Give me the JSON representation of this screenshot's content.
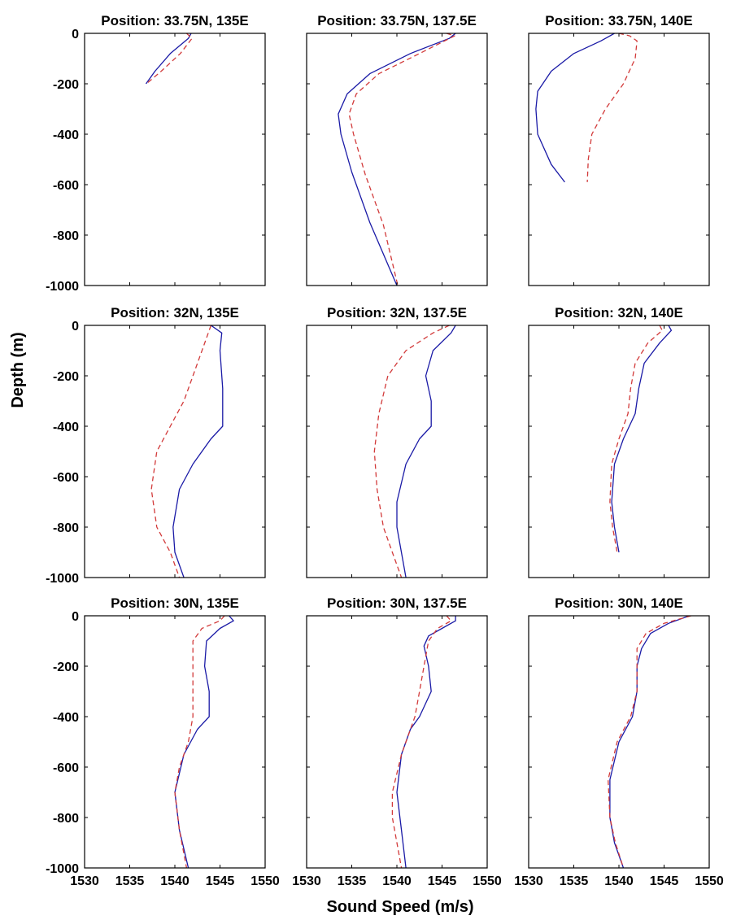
{
  "figure": {
    "xlabel": "Sound Speed (m/s)",
    "ylabel": "Depth (m)",
    "colors": {
      "solid_series": "#1a1aa6",
      "dashed_series": "#d23a3a",
      "axes": "#000000"
    }
  },
  "chart_data": [
    {
      "type": "line",
      "title": "Position: 33.75N, 135E",
      "xlim": [
        1530,
        1550
      ],
      "ylim": [
        -1000,
        0
      ],
      "xticks": [],
      "yticks": [
        0,
        -200,
        -400,
        -600,
        -800,
        -1000
      ],
      "series": [
        {
          "style": "solid",
          "x": [
            1541.8,
            1541.5,
            1539.5,
            1537.8,
            1536.8
          ],
          "y": [
            0,
            -20,
            -80,
            -150,
            -200
          ]
        },
        {
          "style": "dashed",
          "x": [
            1541.3,
            1541.9,
            1540.6,
            1538.5,
            1537.0
          ],
          "y": [
            0,
            -20,
            -80,
            -150,
            -195
          ]
        }
      ]
    },
    {
      "type": "line",
      "title": "Position: 33.75N, 137.5E",
      "xlim": [
        1530,
        1550
      ],
      "ylim": [
        -1000,
        0
      ],
      "xticks": [],
      "yticks": [],
      "series": [
        {
          "style": "solid",
          "x": [
            1546.5,
            1545.8,
            1541.5,
            1537.0,
            1534.5,
            1533.5,
            1533.8,
            1535.0,
            1537.0,
            1540.0
          ],
          "y": [
            0,
            -20,
            -80,
            -160,
            -240,
            -320,
            -400,
            -550,
            -750,
            -1000
          ]
        },
        {
          "style": "dashed",
          "x": [
            1545.5,
            1546.4,
            1542.5,
            1538.0,
            1535.5,
            1534.7,
            1535.2,
            1536.5,
            1538.5,
            1540.1
          ],
          "y": [
            0,
            -10,
            -80,
            -160,
            -240,
            -320,
            -400,
            -560,
            -760,
            -1000
          ]
        }
      ]
    },
    {
      "type": "line",
      "title": "Position: 33.75N, 140E",
      "xlim": [
        1530,
        1550
      ],
      "ylim": [
        -1000,
        0
      ],
      "xticks": [],
      "yticks": [],
      "series": [
        {
          "style": "solid",
          "x": [
            1539.5,
            1538.0,
            1535.0,
            1532.5,
            1531.0,
            1530.8,
            1531.0,
            1532.5,
            1534.0
          ],
          "y": [
            0,
            -30,
            -80,
            -150,
            -230,
            -300,
            -400,
            -520,
            -590
          ]
        },
        {
          "style": "dashed",
          "x": [
            1540.0,
            1541.2,
            1542.0,
            1541.8,
            1540.5,
            1538.5,
            1537.0,
            1536.6,
            1536.5
          ],
          "y": [
            0,
            -10,
            -30,
            -100,
            -200,
            -300,
            -400,
            -500,
            -590
          ]
        }
      ]
    },
    {
      "type": "line",
      "title": "Position: 32N, 135E",
      "xlim": [
        1530,
        1550
      ],
      "ylim": [
        -1000,
        0
      ],
      "xticks": [],
      "yticks": [
        0,
        -200,
        -400,
        -600,
        -800,
        -1000
      ],
      "series": [
        {
          "style": "solid",
          "x": [
            1544.0,
            1545.2,
            1545.0,
            1545.3,
            1545.3,
            1544.0,
            1542.0,
            1540.5,
            1539.8,
            1540.0,
            1541.0
          ],
          "y": [
            0,
            -30,
            -100,
            -250,
            -400,
            -450,
            -550,
            -650,
            -800,
            -900,
            -1000
          ]
        },
        {
          "style": "dashed",
          "x": [
            1544.0,
            1543.5,
            1542.5,
            1541.0,
            1539.5,
            1538.0,
            1537.4,
            1538.0,
            1539.5,
            1540.5
          ],
          "y": [
            0,
            -50,
            -150,
            -300,
            -400,
            -500,
            -650,
            -800,
            -900,
            -1000
          ]
        }
      ]
    },
    {
      "type": "line",
      "title": "Position: 32N, 137.5E",
      "xlim": [
        1530,
        1550
      ],
      "ylim": [
        -1000,
        0
      ],
      "xticks": [],
      "yticks": [],
      "series": [
        {
          "style": "solid",
          "x": [
            1546.5,
            1546.0,
            1544.0,
            1543.2,
            1543.8,
            1543.8,
            1542.5,
            1541.0,
            1540.0,
            1540.0,
            1541.0
          ],
          "y": [
            0,
            -30,
            -100,
            -200,
            -300,
            -400,
            -450,
            -550,
            -700,
            -800,
            -1000
          ]
        },
        {
          "style": "dashed",
          "x": [
            1545.8,
            1544.0,
            1541.0,
            1539.0,
            1538.0,
            1537.5,
            1537.8,
            1538.5,
            1539.5,
            1540.5
          ],
          "y": [
            0,
            -30,
            -100,
            -200,
            -350,
            -500,
            -650,
            -800,
            -900,
            -1000
          ]
        }
      ]
    },
    {
      "type": "line",
      "title": "Position: 32N, 140E",
      "xlim": [
        1530,
        1550
      ],
      "ylim": [
        -1000,
        0
      ],
      "xticks": [],
      "yticks": [],
      "series": [
        {
          "style": "solid",
          "x": [
            1545.5,
            1545.8,
            1544.5,
            1542.8,
            1542.2,
            1541.8,
            1540.5,
            1539.5,
            1539.2,
            1539.5,
            1540.0
          ],
          "y": [
            0,
            -20,
            -70,
            -150,
            -250,
            -350,
            -450,
            -550,
            -700,
            -800,
            -900
          ]
        },
        {
          "style": "dashed",
          "x": [
            1544.5,
            1544.8,
            1543.2,
            1541.8,
            1541.3,
            1541.0,
            1540.0,
            1539.2,
            1539.0,
            1539.3,
            1539.8
          ],
          "y": [
            0,
            -20,
            -70,
            -150,
            -250,
            -350,
            -450,
            -550,
            -700,
            -800,
            -900
          ]
        }
      ]
    },
    {
      "type": "line",
      "title": "Position: 30N, 135E",
      "xlim": [
        1530,
        1550
      ],
      "ylim": [
        -1000,
        0
      ],
      "xticks": [],
      "yticks": [
        0,
        -200,
        -400,
        -600,
        -800,
        -1000
      ],
      "series": [
        {
          "style": "solid",
          "x": [
            1546.0,
            1546.5,
            1545.0,
            1543.5,
            1543.3,
            1543.8,
            1543.8,
            1542.5,
            1541.0,
            1540.0,
            1540.5,
            1541.5
          ],
          "y": [
            0,
            -20,
            -50,
            -100,
            -200,
            -300,
            -400,
            -450,
            -550,
            -700,
            -850,
            -1000
          ]
        },
        {
          "style": "dashed",
          "x": [
            1545.5,
            1545.0,
            1543.0,
            1542.0,
            1542.0,
            1542.0,
            1542.0,
            1541.5,
            1540.5,
            1540.0,
            1540.5,
            1541.3
          ],
          "y": [
            0,
            -20,
            -50,
            -100,
            -200,
            -300,
            -400,
            -500,
            -600,
            -700,
            -850,
            -1000
          ]
        }
      ]
    },
    {
      "type": "line",
      "title": "Position: 30N, 137.5E",
      "xlim": [
        1530,
        1550
      ],
      "ylim": [
        -1000,
        0
      ],
      "xticks": [],
      "yticks": [],
      "series": [
        {
          "style": "solid",
          "x": [
            1546.5,
            1546.5,
            1545.0,
            1543.5,
            1543.0,
            1543.5,
            1543.8,
            1542.5,
            1541.5,
            1540.5,
            1540.0,
            1540.5,
            1541.0
          ],
          "y": [
            0,
            -20,
            -50,
            -80,
            -120,
            -200,
            -300,
            -400,
            -450,
            -550,
            -700,
            -850,
            -1000
          ]
        },
        {
          "style": "dashed",
          "x": [
            1545.5,
            1546.0,
            1544.5,
            1543.5,
            1543.0,
            1542.5,
            1542.0,
            1540.5,
            1539.5,
            1539.5,
            1540.0,
            1540.5
          ],
          "y": [
            0,
            -20,
            -50,
            -100,
            -200,
            -300,
            -400,
            -550,
            -700,
            -800,
            -900,
            -1000
          ]
        }
      ]
    },
    {
      "type": "line",
      "title": "Position: 30N, 140E",
      "xlim": [
        1530,
        1550
      ],
      "ylim": [
        -1000,
        0
      ],
      "xticks": [
        1530,
        1535,
        1540,
        1545,
        1550
      ],
      "yticks": [],
      "series": [
        {
          "style": "solid",
          "x": [
            1547.8,
            1545.5,
            1543.5,
            1542.5,
            1542.0,
            1542.0,
            1541.5,
            1540.0,
            1539.0,
            1539.0,
            1539.5,
            1540.5
          ],
          "y": [
            0,
            -30,
            -70,
            -130,
            -200,
            -300,
            -400,
            -500,
            -650,
            -800,
            -900,
            -1000
          ]
        },
        {
          "style": "dashed",
          "x": [
            1548.0,
            1545.0,
            1543.0,
            1542.0,
            1542.0,
            1542.0,
            1541.3,
            1539.8,
            1538.8,
            1539.0,
            1539.6,
            1540.5
          ],
          "y": [
            0,
            -30,
            -70,
            -130,
            -200,
            -300,
            -400,
            -500,
            -650,
            -800,
            -900,
            -1000
          ]
        }
      ]
    }
  ]
}
